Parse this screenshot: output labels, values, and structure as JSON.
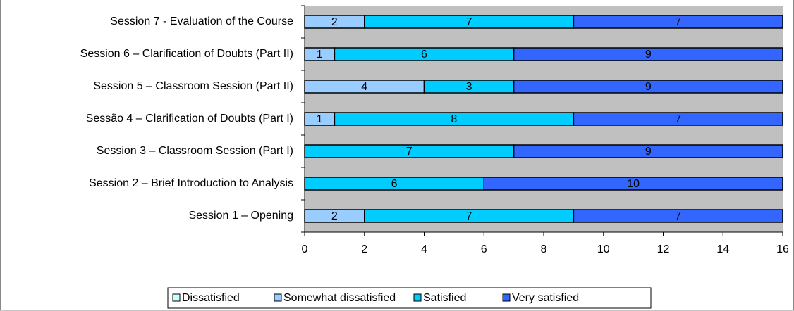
{
  "chart_data": {
    "type": "stacked-bar-horizontal",
    "categories": [
      "Session 7 - Evaluation of the Course",
      "Session 6 – Clarification of Doubts (Part II)",
      "Session 5 – Classroom Session (Part II)",
      "Sessão 4 – Clarification of Doubts (Part I)",
      "Session 3 – Classroom Session (Part I)",
      "Session 2 – Brief Introduction to Analysis",
      "Session 1 – Opening"
    ],
    "series": [
      {
        "name": "Dissatisfied",
        "color": "#ccffff",
        "values": [
          null,
          null,
          null,
          null,
          null,
          null,
          null
        ]
      },
      {
        "name": "Somewhat dissatisfied",
        "color": "#99ccff",
        "values": [
          2,
          1,
          4,
          1,
          null,
          null,
          2
        ]
      },
      {
        "name": "Satisfied",
        "color": "#00ccff",
        "values": [
          7,
          6,
          3,
          8,
          7,
          6,
          7
        ]
      },
      {
        "name": "Very satisfied",
        "color": "#3366ff",
        "values": [
          7,
          9,
          9,
          7,
          9,
          10,
          7
        ]
      }
    ],
    "xlim": [
      0,
      16
    ],
    "xticks": [
      0,
      2,
      4,
      6,
      8,
      10,
      12,
      14,
      16
    ],
    "legend": "bottom"
  }
}
